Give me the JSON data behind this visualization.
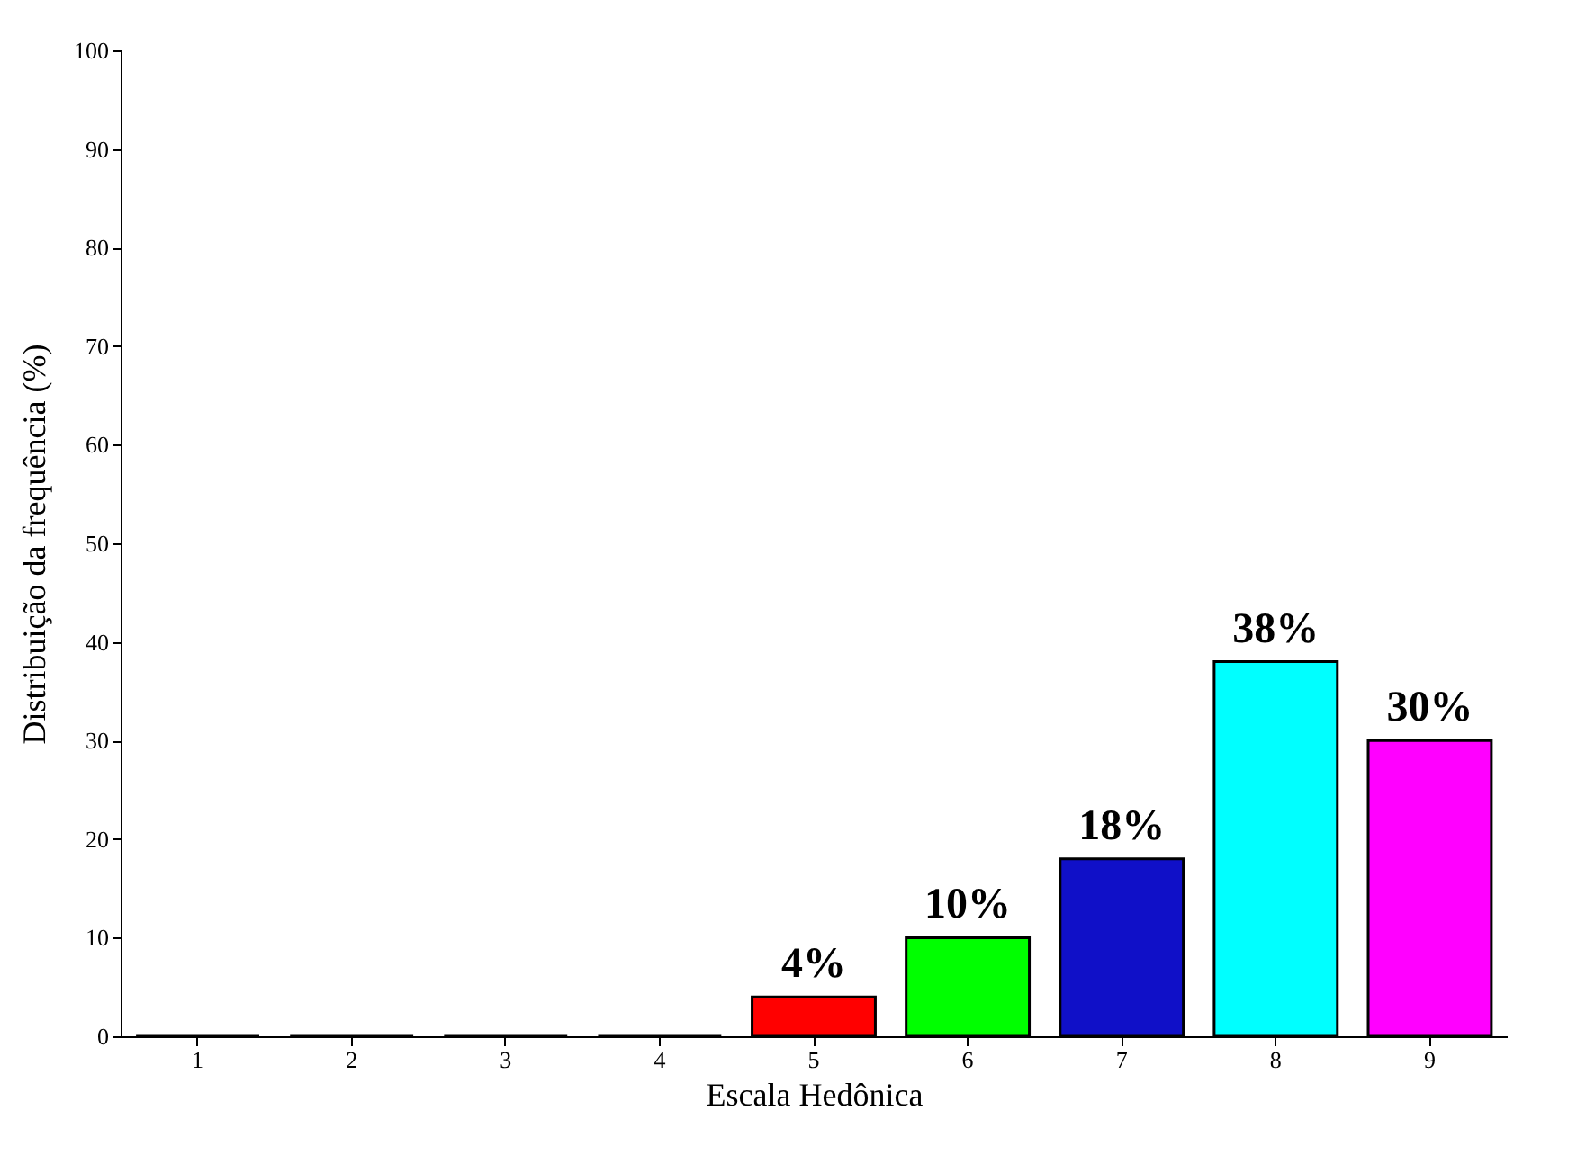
{
  "chart_data": {
    "type": "bar",
    "xlabel": "Escala Hedônica",
    "ylabel": "Distribuição da frequência (%)",
    "categories": [
      "1",
      "2",
      "3",
      "4",
      "5",
      "6",
      "7",
      "8",
      "9"
    ],
    "values": [
      0,
      0,
      0,
      0,
      4,
      10,
      18,
      38,
      30
    ],
    "colors": [
      "#000000",
      "#000000",
      "#000000",
      "#000000",
      "#ff0000",
      "#00ff00",
      "#1010c8",
      "#00ffff",
      "#ff00ff"
    ],
    "value_labels": [
      null,
      null,
      null,
      null,
      "4%",
      "10%",
      "18%",
      "38%",
      "30%"
    ],
    "ylim": [
      0,
      100
    ],
    "yticks": [
      0,
      10,
      20,
      30,
      40,
      50,
      60,
      70,
      80,
      90,
      100
    ],
    "grid": false
  }
}
